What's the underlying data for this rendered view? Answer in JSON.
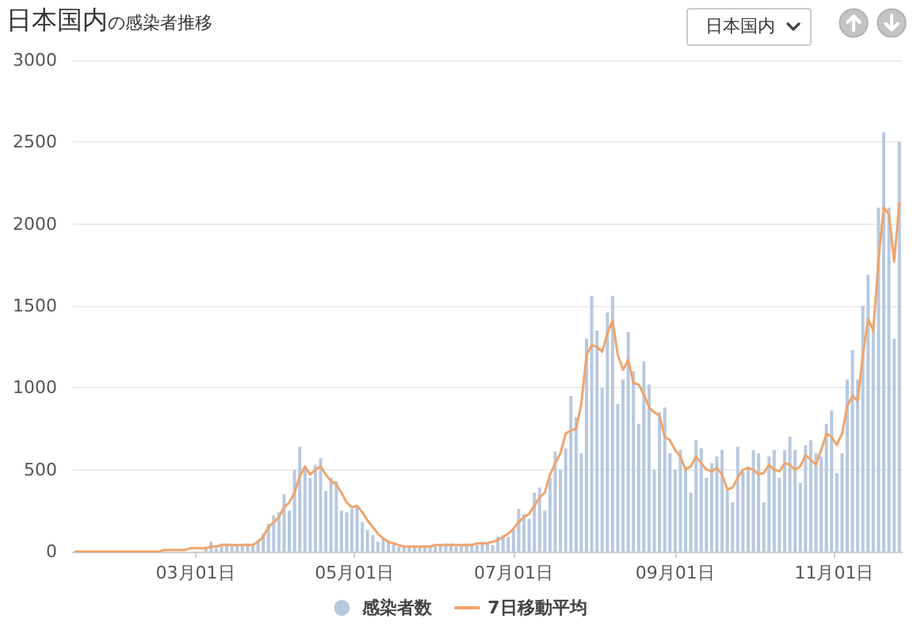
{
  "chart_data": {
    "type": "bar",
    "title": "日本国内",
    "subtitle": "の感染者推移",
    "annotations": [
      "日本国内"
    ],
    "x": [
      "--01-15",
      "--01-17",
      "--01-19",
      "--01-21",
      "--01-23",
      "--01-25",
      "--01-27",
      "--01-29",
      "--01-31",
      "--02-02",
      "--02-04",
      "--02-06",
      "--02-08",
      "--02-10",
      "--02-12",
      "--02-14",
      "--02-16",
      "--02-18",
      "--02-20",
      "--02-22",
      "--02-24",
      "--02-26",
      "--02-28",
      "--03-01",
      "--03-03",
      "--03-05",
      "--03-07",
      "--03-09",
      "--03-11",
      "--03-13",
      "--03-15",
      "--03-17",
      "--03-19",
      "--03-21",
      "--03-23",
      "--03-25",
      "--03-27",
      "--03-29",
      "--03-31",
      "--04-02",
      "--04-04",
      "--04-06",
      "--04-08",
      "--04-10",
      "--04-12",
      "--04-14",
      "--04-16",
      "--04-18",
      "--04-20",
      "--04-22",
      "--04-24",
      "--04-26",
      "--04-28",
      "--04-30",
      "--05-02",
      "--05-04",
      "--05-06",
      "--05-08",
      "--05-10",
      "--05-12",
      "--05-14",
      "--05-16",
      "--05-18",
      "--05-20",
      "--05-22",
      "--05-24",
      "--05-26",
      "--05-28",
      "--05-30",
      "--06-01",
      "--06-03",
      "--06-05",
      "--06-07",
      "--06-09",
      "--06-11",
      "--06-13",
      "--06-15",
      "--06-17",
      "--06-19",
      "--06-21",
      "--06-23",
      "--06-25",
      "--06-27",
      "--06-29",
      "--07-01",
      "--07-03",
      "--07-05",
      "--07-07",
      "--07-09",
      "--07-11",
      "--07-13",
      "--07-15",
      "--07-17",
      "--07-19",
      "--07-21",
      "--07-23",
      "--07-25",
      "--07-27",
      "--07-29",
      "--07-31",
      "--08-02",
      "--08-04",
      "--08-06",
      "--08-08",
      "--08-10",
      "--08-12",
      "--08-14",
      "--08-16",
      "--08-18",
      "--08-20",
      "--08-22",
      "--08-24",
      "--08-26",
      "--08-28",
      "--08-30",
      "--09-01",
      "--09-03",
      "--09-05",
      "--09-07",
      "--09-09",
      "--09-11",
      "--09-13",
      "--09-15",
      "--09-17",
      "--09-19",
      "--09-21",
      "--09-23",
      "--09-25",
      "--09-27",
      "--09-29",
      "--10-01",
      "--10-03",
      "--10-05",
      "--10-07",
      "--10-09",
      "--10-11",
      "--10-13",
      "--10-15",
      "--10-17",
      "--10-19",
      "--10-21",
      "--10-23",
      "--10-25",
      "--10-27",
      "--10-29",
      "--10-31",
      "--11-02",
      "--11-04",
      "--11-06",
      "--11-08",
      "--11-10",
      "--11-12",
      "--11-14",
      "--11-16",
      "--11-18",
      "--11-20",
      "--11-22",
      "--11-24",
      "--11-26"
    ],
    "series": [
      {
        "name": "感染者数",
        "color": "#b7c8e0",
        "values": [
          null,
          null,
          null,
          null,
          null,
          null,
          null,
          null,
          null,
          null,
          null,
          null,
          null,
          null,
          null,
          null,
          null,
          null,
          null,
          null,
          null,
          null,
          null,
          null,
          null,
          30,
          60,
          20,
          50,
          50,
          40,
          40,
          40,
          50,
          40,
          70,
          110,
          170,
          220,
          240,
          350,
          250,
          500,
          640,
          510,
          450,
          530,
          570,
          370,
          450,
          430,
          250,
          240,
          260,
          280,
          180,
          130,
          100,
          60,
          80,
          60,
          50,
          30,
          30,
          30,
          30,
          30,
          40,
          40,
          30,
          40,
          50,
          50,
          30,
          40,
          50,
          50,
          40,
          60,
          60,
          40,
          90,
          100,
          90,
          130,
          260,
          230,
          200,
          360,
          390,
          250,
          450,
          610,
          500,
          630,
          950,
          820,
          600,
          1300,
          1560,
          1350,
          1000,
          1460,
          1560,
          900,
          1050,
          1340,
          1100,
          780,
          1160,
          1020,
          500,
          850,
          880,
          600,
          500,
          620,
          520,
          360,
          680,
          630,
          450,
          540,
          580,
          620,
          380,
          300,
          640,
          490,
          520,
          620,
          600,
          300,
          580,
          620,
          450,
          620,
          700,
          620,
          420,
          650,
          680,
          600,
          580,
          780,
          860,
          480,
          600,
          1050,
          1230,
          1050,
          1500,
          1690,
          1390,
          2100,
          2560,
          2100,
          1300,
          2500
        ]
      },
      {
        "name": "7日移動平均",
        "type": "line",
        "color": "#f0a46a",
        "values": [
          0,
          0,
          0,
          0,
          0,
          0,
          0,
          0,
          0,
          0,
          0,
          0,
          0,
          0,
          0,
          0,
          0,
          10,
          10,
          10,
          10,
          10,
          20,
          20,
          20,
          20,
          30,
          30,
          40,
          40,
          40,
          40,
          40,
          40,
          40,
          60,
          90,
          150,
          180,
          210,
          270,
          300,
          360,
          460,
          520,
          470,
          500,
          520,
          470,
          430,
          410,
          360,
          300,
          270,
          280,
          240,
          190,
          150,
          110,
          80,
          60,
          50,
          40,
          30,
          30,
          30,
          30,
          30,
          30,
          40,
          40,
          40,
          40,
          40,
          40,
          40,
          40,
          50,
          50,
          50,
          60,
          70,
          90,
          110,
          140,
          180,
          210,
          230,
          280,
          330,
          360,
          470,
          540,
          600,
          720,
          740,
          750,
          900,
          1200,
          1260,
          1250,
          1220,
          1330,
          1410,
          1200,
          1110,
          1170,
          1030,
          1020,
          960,
          880,
          850,
          830,
          700,
          680,
          620,
          580,
          500,
          520,
          580,
          540,
          500,
          490,
          510,
          470,
          380,
          390,
          450,
          500,
          510,
          500,
          470,
          480,
          530,
          500,
          490,
          540,
          530,
          500,
          520,
          590,
          560,
          530,
          620,
          720,
          700,
          650,
          720,
          890,
          950,
          920,
          1200,
          1420,
          1350,
          1780,
          2100,
          2060,
          1770,
          2130
        ]
      }
    ],
    "xlim": [
      "--01-14",
      "--11-27"
    ],
    "xticks": [
      {
        "value": "--03-01",
        "label": "03月01日"
      },
      {
        "value": "--05-01",
        "label": "05月01日"
      },
      {
        "value": "--07-01",
        "label": "07月01日"
      },
      {
        "value": "--09-01",
        "label": "09月01日"
      },
      {
        "value": "--11-01",
        "label": "11月01日"
      }
    ],
    "ylim": [
      0,
      3000
    ],
    "yticks": [
      0,
      500,
      1000,
      1500,
      2000,
      2500,
      3000
    ],
    "grid": "y",
    "legend": "bottom",
    "marker": "none"
  }
}
